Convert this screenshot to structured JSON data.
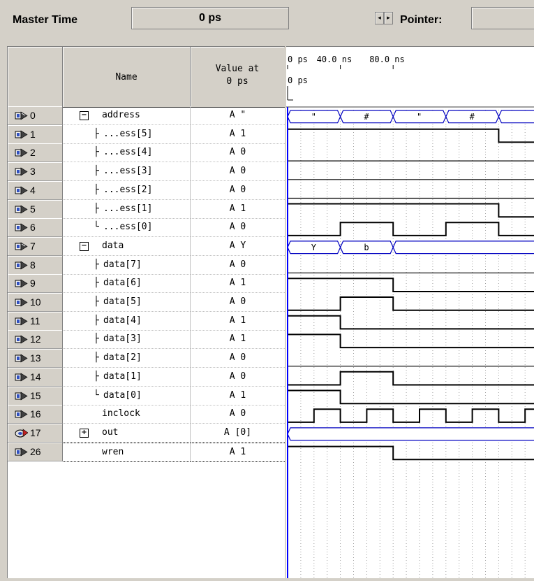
{
  "toolbar": {
    "master_time_label": "Master Time",
    "master_time_value": "0 ps",
    "spin_left": "◂",
    "spin_right": "▸",
    "pointer_label": "Pointer:",
    "pointer_value": ""
  },
  "grid": {
    "col_name": "Name",
    "col_value_line1": "Value at",
    "col_value_line2": "0 ps"
  },
  "timeline": {
    "ticks": [
      "0 ps",
      "40.0 ns",
      "80.0 ns"
    ],
    "cursor_label": "0 ps"
  },
  "signals": [
    {
      "id": "0",
      "name": "address",
      "value": "A \"",
      "kind": "bus-in",
      "expander": "−",
      "tree": ""
    },
    {
      "id": "1",
      "name": "...ess[5]",
      "value": "A 1",
      "kind": "in",
      "tree": "├"
    },
    {
      "id": "2",
      "name": "...ess[4]",
      "value": "A 0",
      "kind": "in",
      "tree": "├"
    },
    {
      "id": "3",
      "name": "...ess[3]",
      "value": "A 0",
      "kind": "in",
      "tree": "├"
    },
    {
      "id": "4",
      "name": "...ess[2]",
      "value": "A 0",
      "kind": "in",
      "tree": "├"
    },
    {
      "id": "5",
      "name": "...ess[1]",
      "value": "A 1",
      "kind": "in",
      "tree": "├"
    },
    {
      "id": "6",
      "name": "...ess[0]",
      "value": "A 0",
      "kind": "in",
      "tree": "└"
    },
    {
      "id": "7",
      "name": "data",
      "value": "A Y",
      "kind": "bus-in",
      "expander": "−",
      "tree": ""
    },
    {
      "id": "8",
      "name": "data[7]",
      "value": "A 0",
      "kind": "in",
      "tree": "├"
    },
    {
      "id": "9",
      "name": "data[6]",
      "value": "A 1",
      "kind": "in",
      "tree": "├"
    },
    {
      "id": "10",
      "name": "data[5]",
      "value": "A 0",
      "kind": "in",
      "tree": "├"
    },
    {
      "id": "11",
      "name": "data[4]",
      "value": "A 1",
      "kind": "in",
      "tree": "├"
    },
    {
      "id": "12",
      "name": "data[3]",
      "value": "A 1",
      "kind": "in",
      "tree": "├"
    },
    {
      "id": "13",
      "name": "data[2]",
      "value": "A 0",
      "kind": "in",
      "tree": "├"
    },
    {
      "id": "14",
      "name": "data[1]",
      "value": "A 0",
      "kind": "in",
      "tree": "├"
    },
    {
      "id": "15",
      "name": "data[0]",
      "value": "A 1",
      "kind": "in",
      "tree": "└"
    },
    {
      "id": "16",
      "name": "inclock",
      "value": "A 0",
      "kind": "in",
      "tree": ""
    },
    {
      "id": "17",
      "name": "out",
      "value": "A [0]",
      "kind": "bus-out",
      "expander": "+",
      "tree": ""
    },
    {
      "id": "26",
      "name": "wren",
      "value": "A 1",
      "kind": "in",
      "tree": ""
    }
  ],
  "waves": {
    "address_bus_labels": [
      "\"",
      "#",
      "\"",
      "#"
    ],
    "data_bus_labels": [
      "Y",
      "b"
    ]
  },
  "colors": {
    "bus": "#0000c0",
    "cursor": "#0000ff",
    "wave": "#000000",
    "grid": "#a0a0a0"
  }
}
